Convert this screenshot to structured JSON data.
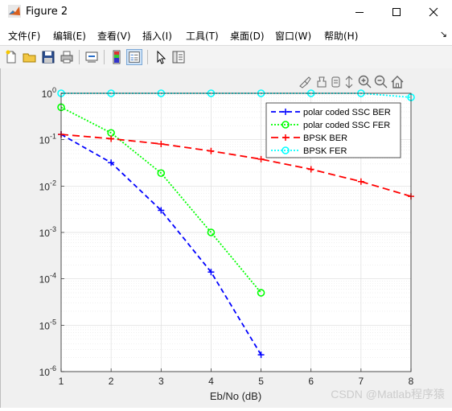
{
  "window": {
    "title": "Figure 2"
  },
  "menu": {
    "items": [
      "文件(F)",
      "编辑(E)",
      "查看(V)",
      "插入(I)",
      "工具(T)",
      "桌面(D)",
      "窗口(W)",
      "帮助(H)"
    ]
  },
  "toolbar": {
    "icons": [
      "new-figure-icon",
      "open-file-icon",
      "save-icon",
      "print-icon",
      "link-icon",
      "colorbar-icon",
      "legend-icon",
      "pointer-icon",
      "property-editor-icon"
    ]
  },
  "axes_toolbar": {
    "icons": [
      "brush-icon",
      "data-tips-icon",
      "pan-icon",
      "zoom-in-icon",
      "zoom-out-icon",
      "home-icon"
    ]
  },
  "watermark": "CSDN @Matlab程序猿",
  "colors": {
    "blue": "#0000ff",
    "green": "#00ff00",
    "red": "#ff0000",
    "cyan": "#00ffff"
  },
  "chart_data": {
    "type": "line",
    "xlabel": "Eb/No (dB)",
    "ylabel": "",
    "title": "",
    "xlim": [
      1,
      8
    ],
    "ylim": [
      1e-06,
      1
    ],
    "yscale": "log",
    "grid": true,
    "minor_grid": true,
    "legend_position": "top-right",
    "xticks": [
      "1",
      "2",
      "3",
      "4",
      "5",
      "6",
      "7",
      "8"
    ],
    "yticks": [
      {
        "base": "10",
        "exp": "0"
      },
      {
        "base": "10",
        "exp": "-1"
      },
      {
        "base": "10",
        "exp": "-2"
      },
      {
        "base": "10",
        "exp": "-3"
      },
      {
        "base": "10",
        "exp": "-4"
      },
      {
        "base": "10",
        "exp": "-5"
      },
      {
        "base": "10",
        "exp": "-6"
      }
    ],
    "series": [
      {
        "name": "polar coded SSC BER",
        "color": "#0000ff",
        "dash": "6,4",
        "marker": "+",
        "x": [
          1,
          2,
          3,
          4,
          5
        ],
        "y": [
          0.13,
          0.032,
          0.003,
          0.00014,
          2.3e-06
        ]
      },
      {
        "name": "polar coded SSC FER",
        "color": "#00ff00",
        "dash": "2,2",
        "marker": "o",
        "x": [
          1,
          2,
          3,
          4,
          5
        ],
        "y": [
          0.5,
          0.14,
          0.019,
          0.001,
          5e-05
        ]
      },
      {
        "name": "BPSK BER",
        "color": "#ff0000",
        "dash": "9,5",
        "marker": "+",
        "x": [
          1,
          2,
          3,
          4,
          5,
          6,
          7,
          8
        ],
        "y": [
          0.13,
          0.105,
          0.081,
          0.057,
          0.038,
          0.023,
          0.0125,
          0.006
        ]
      },
      {
        "name": "BPSK FER",
        "color": "#00ffff",
        "dash": "2,2",
        "marker": "o",
        "x": [
          1,
          2,
          3,
          4,
          5,
          6,
          7,
          8
        ],
        "y": [
          1,
          1,
          1,
          1,
          1,
          1,
          1,
          0.82
        ]
      }
    ]
  }
}
